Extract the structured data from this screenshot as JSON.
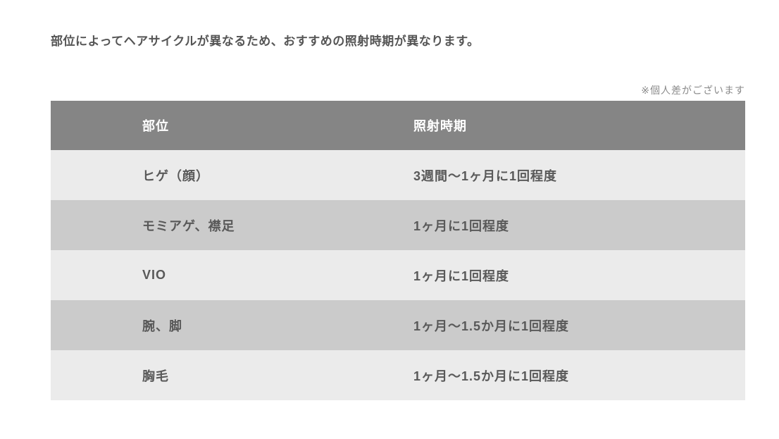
{
  "page": {
    "heading": "部位によってヘアサイクルが異なるため、おすすめの照射時期が異なります。",
    "note": "※個人差がございます"
  },
  "table": {
    "columns": [
      "部位",
      "照射時期"
    ],
    "rows": [
      {
        "part": "ヒゲ（顔）",
        "timing": "3週間〜1ヶ月に1回程度"
      },
      {
        "part": "モミアゲ、襟足",
        "timing": "1ヶ月に1回程度"
      },
      {
        "part": "VIO",
        "timing": "1ヶ月に1回程度"
      },
      {
        "part": "腕、脚",
        "timing": "1ヶ月〜1.5か月に1回程度"
      },
      {
        "part": "胸毛",
        "timing": "1ヶ月〜1.5か月に1回程度"
      }
    ]
  },
  "colors": {
    "header_bg": "#858585",
    "header_text": "#ffffff",
    "row_light": "#ebebeb",
    "row_medium": "#cbcbcb",
    "body_text": "#595959",
    "heading_text": "#555555",
    "note_text": "#8a8a8a",
    "page_bg": "#ffffff"
  }
}
